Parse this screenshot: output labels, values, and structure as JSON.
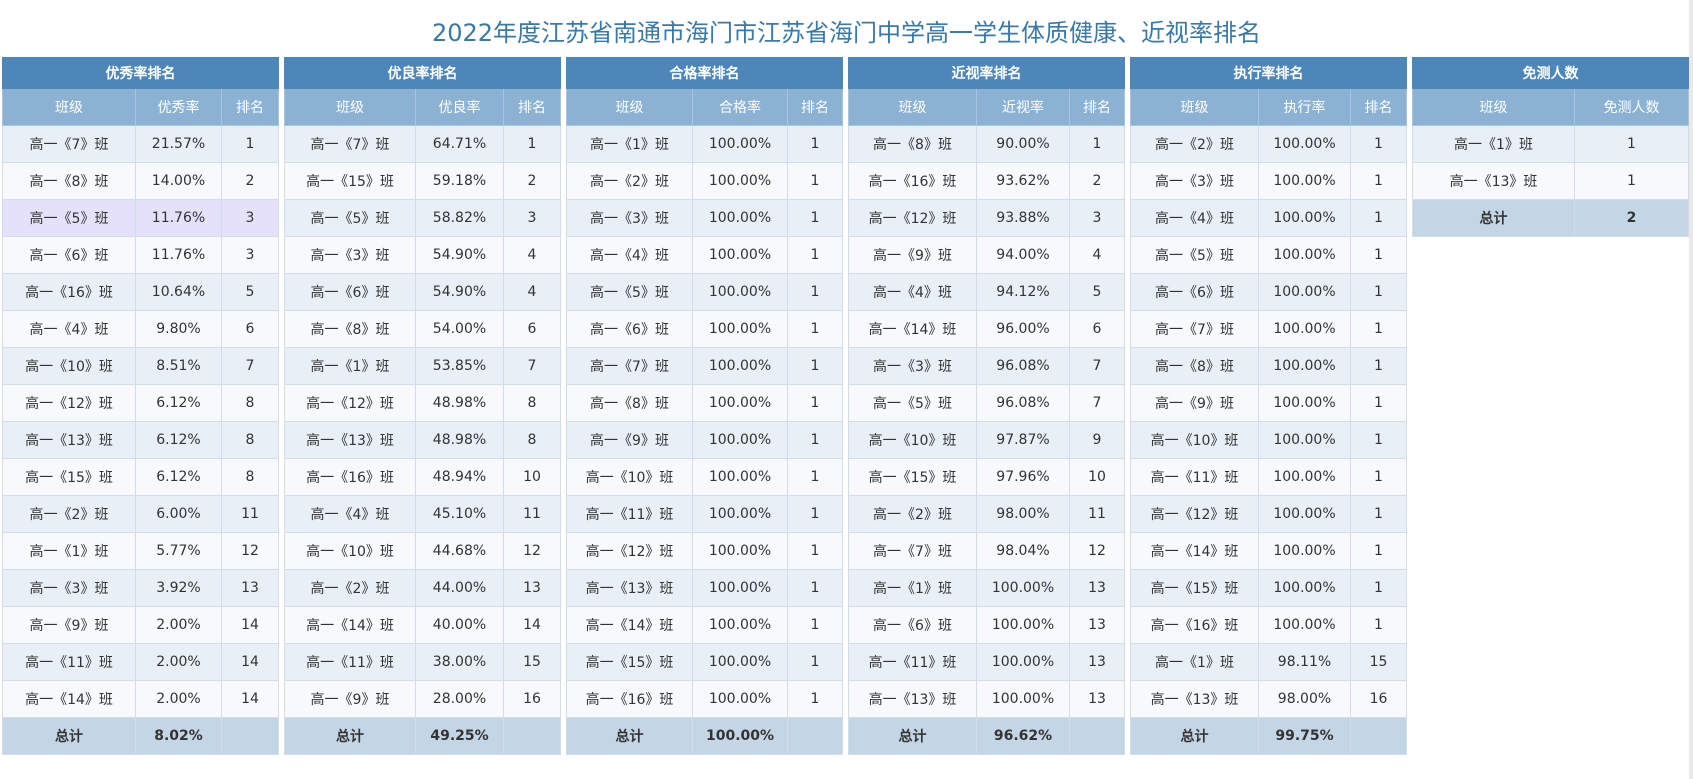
{
  "page_title": "2022年度江苏省南通市海门市江苏省海门中学高一学生体质健康、近视率排名",
  "panels": [
    {
      "title": "优秀率排名",
      "headers": [
        "班级",
        "优秀率",
        "排名"
      ],
      "rows": [
        [
          "高一《7》班",
          "21.57%",
          "1"
        ],
        [
          "高一《8》班",
          "14.00%",
          "2"
        ],
        [
          "高一《5》班",
          "11.76%",
          "3"
        ],
        [
          "高一《6》班",
          "11.76%",
          "3"
        ],
        [
          "高一《16》班",
          "10.64%",
          "5"
        ],
        [
          "高一《4》班",
          "9.80%",
          "6"
        ],
        [
          "高一《10》班",
          "8.51%",
          "7"
        ],
        [
          "高一《12》班",
          "6.12%",
          "8"
        ],
        [
          "高一《13》班",
          "6.12%",
          "8"
        ],
        [
          "高一《15》班",
          "6.12%",
          "8"
        ],
        [
          "高一《2》班",
          "6.00%",
          "11"
        ],
        [
          "高一《1》班",
          "5.77%",
          "12"
        ],
        [
          "高一《3》班",
          "3.92%",
          "13"
        ],
        [
          "高一《9》班",
          "2.00%",
          "14"
        ],
        [
          "高一《11》班",
          "2.00%",
          "14"
        ],
        [
          "高一《14》班",
          "2.00%",
          "14"
        ]
      ],
      "highlight_row": 2,
      "total": [
        "总计",
        "8.02%",
        ""
      ]
    },
    {
      "title": "优良率排名",
      "headers": [
        "班级",
        "优良率",
        "排名"
      ],
      "rows": [
        [
          "高一《7》班",
          "64.71%",
          "1"
        ],
        [
          "高一《15》班",
          "59.18%",
          "2"
        ],
        [
          "高一《5》班",
          "58.82%",
          "3"
        ],
        [
          "高一《3》班",
          "54.90%",
          "4"
        ],
        [
          "高一《6》班",
          "54.90%",
          "4"
        ],
        [
          "高一《8》班",
          "54.00%",
          "6"
        ],
        [
          "高一《1》班",
          "53.85%",
          "7"
        ],
        [
          "高一《12》班",
          "48.98%",
          "8"
        ],
        [
          "高一《13》班",
          "48.98%",
          "8"
        ],
        [
          "高一《16》班",
          "48.94%",
          "10"
        ],
        [
          "高一《4》班",
          "45.10%",
          "11"
        ],
        [
          "高一《10》班",
          "44.68%",
          "12"
        ],
        [
          "高一《2》班",
          "44.00%",
          "13"
        ],
        [
          "高一《14》班",
          "40.00%",
          "14"
        ],
        [
          "高一《11》班",
          "38.00%",
          "15"
        ],
        [
          "高一《9》班",
          "28.00%",
          "16"
        ]
      ],
      "total": [
        "总计",
        "49.25%",
        ""
      ]
    },
    {
      "title": "合格率排名",
      "headers": [
        "班级",
        "合格率",
        "排名"
      ],
      "rows": [
        [
          "高一《1》班",
          "100.00%",
          "1"
        ],
        [
          "高一《2》班",
          "100.00%",
          "1"
        ],
        [
          "高一《3》班",
          "100.00%",
          "1"
        ],
        [
          "高一《4》班",
          "100.00%",
          "1"
        ],
        [
          "高一《5》班",
          "100.00%",
          "1"
        ],
        [
          "高一《6》班",
          "100.00%",
          "1"
        ],
        [
          "高一《7》班",
          "100.00%",
          "1"
        ],
        [
          "高一《8》班",
          "100.00%",
          "1"
        ],
        [
          "高一《9》班",
          "100.00%",
          "1"
        ],
        [
          "高一《10》班",
          "100.00%",
          "1"
        ],
        [
          "高一《11》班",
          "100.00%",
          "1"
        ],
        [
          "高一《12》班",
          "100.00%",
          "1"
        ],
        [
          "高一《13》班",
          "100.00%",
          "1"
        ],
        [
          "高一《14》班",
          "100.00%",
          "1"
        ],
        [
          "高一《15》班",
          "100.00%",
          "1"
        ],
        [
          "高一《16》班",
          "100.00%",
          "1"
        ]
      ],
      "total": [
        "总计",
        "100.00%",
        ""
      ]
    },
    {
      "title": "近视率排名",
      "headers": [
        "班级",
        "近视率",
        "排名"
      ],
      "rows": [
        [
          "高一《8》班",
          "90.00%",
          "1"
        ],
        [
          "高一《16》班",
          "93.62%",
          "2"
        ],
        [
          "高一《12》班",
          "93.88%",
          "3"
        ],
        [
          "高一《9》班",
          "94.00%",
          "4"
        ],
        [
          "高一《4》班",
          "94.12%",
          "5"
        ],
        [
          "高一《14》班",
          "96.00%",
          "6"
        ],
        [
          "高一《3》班",
          "96.08%",
          "7"
        ],
        [
          "高一《5》班",
          "96.08%",
          "7"
        ],
        [
          "高一《10》班",
          "97.87%",
          "9"
        ],
        [
          "高一《15》班",
          "97.96%",
          "10"
        ],
        [
          "高一《2》班",
          "98.00%",
          "11"
        ],
        [
          "高一《7》班",
          "98.04%",
          "12"
        ],
        [
          "高一《1》班",
          "100.00%",
          "13"
        ],
        [
          "高一《6》班",
          "100.00%",
          "13"
        ],
        [
          "高一《11》班",
          "100.00%",
          "13"
        ],
        [
          "高一《13》班",
          "100.00%",
          "13"
        ]
      ],
      "total": [
        "总计",
        "96.62%",
        ""
      ]
    },
    {
      "title": "执行率排名",
      "headers": [
        "班级",
        "执行率",
        "排名"
      ],
      "rows": [
        [
          "高一《2》班",
          "100.00%",
          "1"
        ],
        [
          "高一《3》班",
          "100.00%",
          "1"
        ],
        [
          "高一《4》班",
          "100.00%",
          "1"
        ],
        [
          "高一《5》班",
          "100.00%",
          "1"
        ],
        [
          "高一《6》班",
          "100.00%",
          "1"
        ],
        [
          "高一《7》班",
          "100.00%",
          "1"
        ],
        [
          "高一《8》班",
          "100.00%",
          "1"
        ],
        [
          "高一《9》班",
          "100.00%",
          "1"
        ],
        [
          "高一《10》班",
          "100.00%",
          "1"
        ],
        [
          "高一《11》班",
          "100.00%",
          "1"
        ],
        [
          "高一《12》班",
          "100.00%",
          "1"
        ],
        [
          "高一《14》班",
          "100.00%",
          "1"
        ],
        [
          "高一《15》班",
          "100.00%",
          "1"
        ],
        [
          "高一《16》班",
          "100.00%",
          "1"
        ],
        [
          "高一《1》班",
          "98.11%",
          "15"
        ],
        [
          "高一《13》班",
          "98.00%",
          "16"
        ]
      ],
      "total": [
        "总计",
        "99.75%",
        ""
      ]
    },
    {
      "title": "免测人数",
      "headers": [
        "班级",
        "免测人数"
      ],
      "rows": [
        [
          "高一《1》班",
          "1"
        ],
        [
          "高一《13》班",
          "1"
        ]
      ],
      "total": [
        "总计",
        "2"
      ]
    }
  ]
}
